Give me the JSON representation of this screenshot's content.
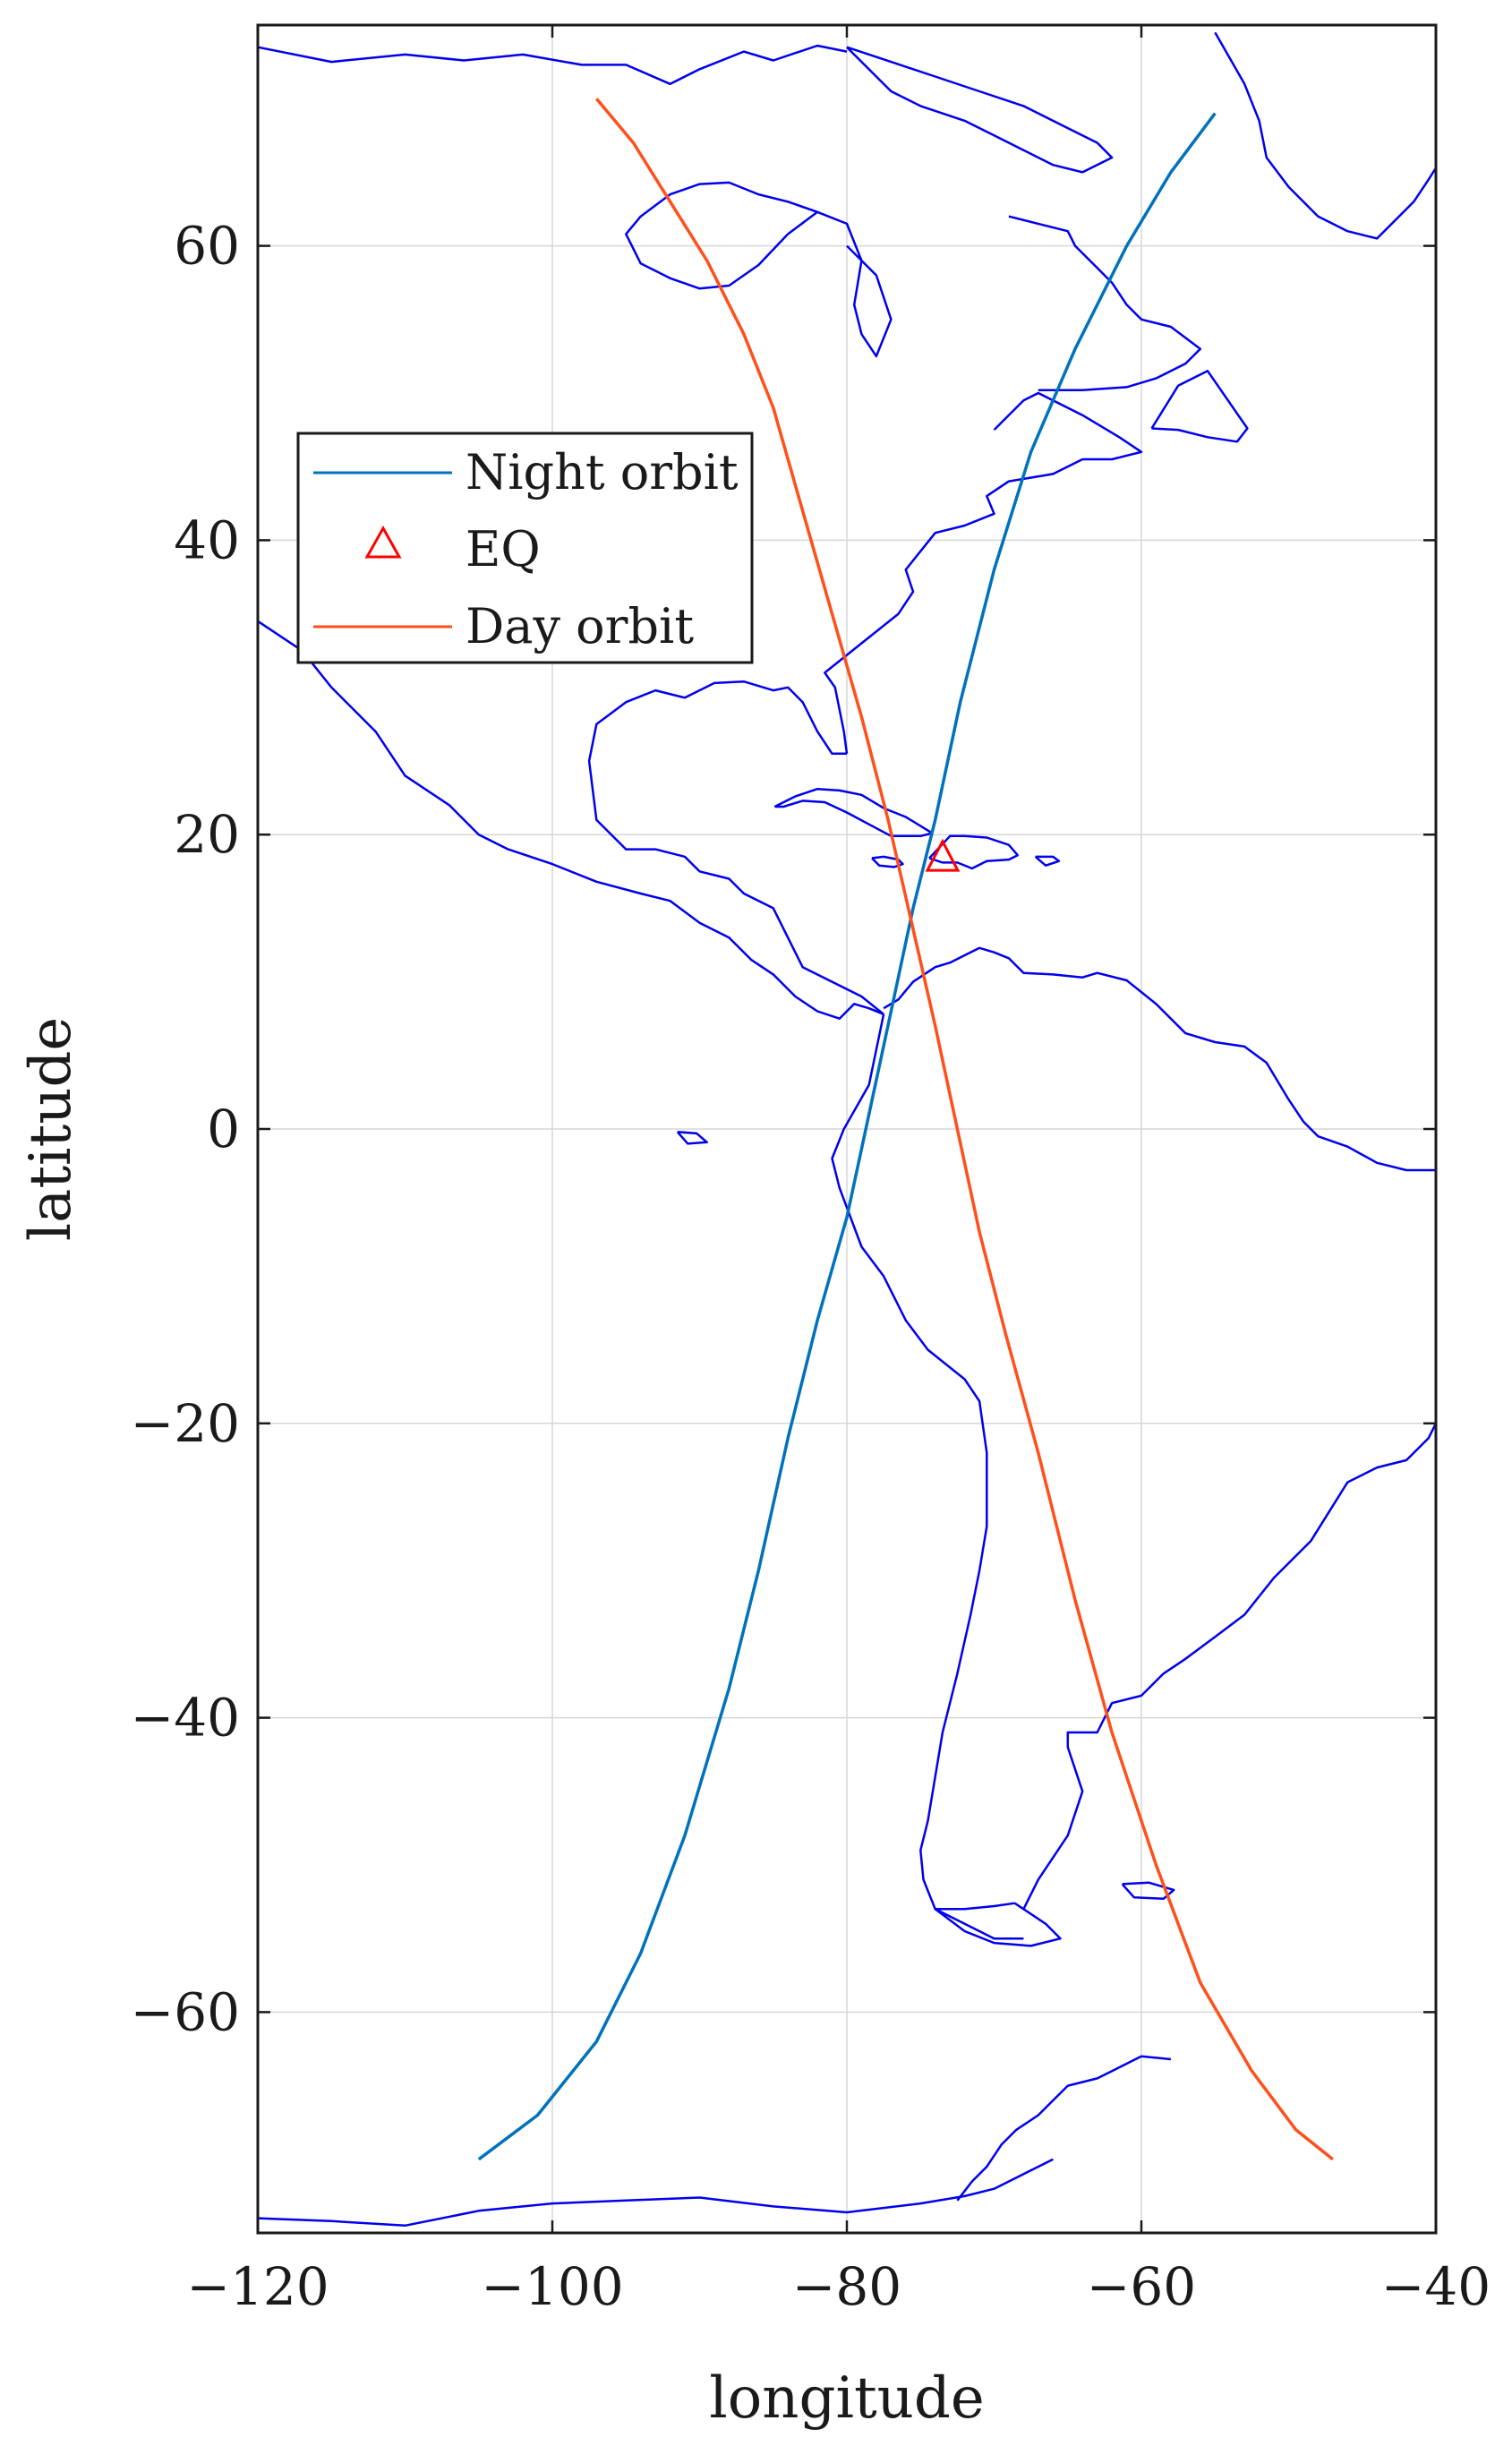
{
  "chart_data": {
    "type": "line",
    "title": "",
    "xlabel": "longitude",
    "ylabel": "latitude",
    "xlim": [
      -120,
      -40
    ],
    "ylim": [
      -75,
      75
    ],
    "xticks": [
      -120,
      -100,
      -80,
      -60,
      -40
    ],
    "yticks": [
      -60,
      -40,
      -20,
      0,
      20,
      40,
      60
    ],
    "xtick_labels": [
      "−120",
      "−100",
      "−80",
      "−60",
      "−40"
    ],
    "ytick_labels": [
      "−60",
      "−40",
      "−20",
      "0",
      "20",
      "40",
      "60"
    ],
    "grid": true,
    "legend_position": "upper-left",
    "background_map": "coastlines",
    "colors": {
      "coastline": "#0000ee",
      "night_orbit": "#0072bd",
      "day_orbit": "#ff4f1a",
      "eq_marker": "#ff0000",
      "grid": "#d6d6d6",
      "axes": "#1a1a1a"
    },
    "series": [
      {
        "name": "Night orbit",
        "marker": "line",
        "x": [
          -105.0,
          -101.0,
          -97.0,
          -94.0,
          -91.0,
          -88.0,
          -86.0,
          -84.0,
          -82.0,
          -80.0,
          -78.5,
          -77.0,
          -75.5,
          -74.0,
          -72.3,
          -70.0,
          -67.5,
          -64.5,
          -61.0,
          -58.0,
          -55.0
        ],
        "y": [
          -70,
          -67,
          -62,
          -56,
          -48,
          -38,
          -30,
          -21,
          -13,
          -6,
          1,
          8,
          15,
          21,
          29,
          38,
          46,
          53,
          60,
          65,
          69
        ]
      },
      {
        "name": "EQ",
        "marker": "triangle",
        "x": [
          -73.5
        ],
        "y": [
          18.5
        ]
      },
      {
        "name": "Day orbit",
        "marker": "line",
        "x": [
          -97.0,
          -94.5,
          -92.0,
          -89.5,
          -87.0,
          -85.0,
          -83.0,
          -81.0,
          -79.0,
          -77.2,
          -75.6,
          -74.0,
          -72.5,
          -71.0,
          -69.2,
          -67.0,
          -64.5,
          -62.0,
          -59.0,
          -56.0,
          -52.5,
          -49.5,
          -47.0
        ],
        "y": [
          70,
          67,
          63,
          59,
          54,
          49,
          42,
          35,
          28,
          21,
          14,
          7,
          0,
          -7,
          -14,
          -22,
          -32,
          -41,
          -50,
          -58,
          -64,
          -68,
          -70
        ]
      }
    ]
  },
  "legend": {
    "items": [
      {
        "label": "Night orbit",
        "symbol": "line",
        "color": "#0072bd"
      },
      {
        "label": "EQ",
        "symbol": "triangle",
        "color": "#ff0000"
      },
      {
        "label": "Day orbit",
        "symbol": "line",
        "color": "#ff4f1a"
      }
    ]
  },
  "map": {
    "coastlines": [
      {
        "name": "north-america-pacific",
        "lon": [
          -120,
          -117,
          -115,
          -112,
          -110,
          -107,
          -105,
          -103,
          -100,
          -97,
          -94,
          -92,
          -90,
          -88,
          -86.5,
          -85,
          -83.5,
          -82,
          -80.5,
          -79.5,
          -78.5,
          -77.5
        ],
        "lat": [
          34.5,
          32.5,
          30,
          27,
          24,
          22,
          20,
          19,
          18,
          16.8,
          16,
          15.5,
          14,
          13,
          11.5,
          10.5,
          9,
          8,
          7.5,
          8.5,
          8.2,
          7.8
        ]
      },
      {
        "name": "south-america-west",
        "lon": [
          -77.5,
          -78.5,
          -80.2,
          -81,
          -80.5,
          -79,
          -77.5,
          -76,
          -74.5,
          -72,
          -71,
          -70.5,
          -70.5,
          -71,
          -71.6,
          -72.5,
          -73.5,
          -74,
          -74.5,
          -75,
          -74.8,
          -74,
          -72,
          -70,
          -68
        ],
        "lat": [
          7.8,
          3,
          0,
          -2,
          -4,
          -8,
          -10,
          -13,
          -15,
          -17,
          -18.5,
          -22,
          -27,
          -30,
          -33,
          -37,
          -41,
          -44,
          -47,
          -49,
          -51,
          -53,
          -54,
          -55,
          -55
        ]
      },
      {
        "name": "south-america-east",
        "lon": [
          -68,
          -67,
          -65,
          -64,
          -65,
          -65,
          -63,
          -62,
          -60,
          -58.5,
          -57,
          -55,
          -53,
          -51,
          -48.5,
          -46,
          -44,
          -42,
          -40.5,
          -40
        ],
        "lat": [
          -53,
          -51,
          -48,
          -45,
          -42,
          -41,
          -41,
          -39,
          -38.5,
          -37,
          -36,
          -34.5,
          -33,
          -30.5,
          -28,
          -24,
          -23,
          -22.5,
          -21,
          -20
        ]
      },
      {
        "name": "south-america-north",
        "lon": [
          -77.5,
          -76.5,
          -75.5,
          -74,
          -73,
          -72,
          -71,
          -70,
          -69,
          -68,
          -66,
          -64,
          -63,
          -61,
          -59,
          -57,
          -55,
          -53,
          -51.5,
          -50,
          -49,
          -48,
          -46,
          -44,
          -42,
          -40
        ],
        "lat": [
          8.2,
          8.8,
          10,
          11,
          11.3,
          11.8,
          12.3,
          12,
          11.6,
          10.6,
          10.5,
          10.3,
          10.6,
          10.1,
          8.5,
          6.5,
          5.9,
          5.6,
          4.5,
          2,
          0.5,
          -0.5,
          -1.2,
          -2.3,
          -2.8,
          -2.8
        ]
      },
      {
        "name": "gulf-of-mexico",
        "lon": [
          -77.5,
          -79,
          -81,
          -83,
          -84,
          -85,
          -87,
          -88,
          -90,
          -91,
          -93,
          -95,
          -97,
          -97.5,
          -97,
          -95,
          -93,
          -91,
          -89,
          -87,
          -85,
          -84,
          -83,
          -82,
          -81,
          -80
        ],
        "lat": [
          7.8,
          9,
          10,
          11,
          13,
          15,
          16,
          17,
          17.5,
          18.5,
          19,
          19,
          21,
          25,
          27.5,
          29,
          29.8,
          29.3,
          30.3,
          30.4,
          29.8,
          30,
          29,
          27,
          25.5,
          25.5
        ]
      },
      {
        "name": "north-america-atlantic",
        "lon": [
          -80,
          -80.2,
          -80.8,
          -81.5,
          -79,
          -76.5,
          -75.5,
          -76,
          -74,
          -72,
          -70,
          -70.5,
          -69,
          -66,
          -64,
          -62,
          -60,
          -61.5,
          -64,
          -66,
          -67,
          -68,
          -70
        ],
        "lat": [
          25.5,
          27,
          30,
          31,
          33,
          35,
          36.5,
          38,
          40.5,
          41,
          41.8,
          43,
          44,
          44.5,
          45.5,
          45.5,
          46,
          47,
          48.5,
          49.5,
          50,
          49.5,
          47.5
        ]
      },
      {
        "name": "labrador-coast",
        "lon": [
          -67,
          -64,
          -61,
          -59,
          -57,
          -56,
          -58,
          -60,
          -61,
          -62,
          -63,
          -64.5,
          -65,
          -67,
          -69
        ],
        "lat": [
          50.2,
          50.2,
          50.4,
          51,
          52,
          53,
          54.5,
          55,
          56,
          57.5,
          58.5,
          60,
          61,
          61.5,
          62
        ]
      },
      {
        "name": "hudson-bay",
        "lon": [
          -82,
          -84,
          -86,
          -88,
          -90,
          -92,
          -94,
          -95,
          -94,
          -92,
          -90,
          -88,
          -86,
          -84,
          -82,
          -80,
          -79,
          -79.5,
          -79,
          -78,
          -77,
          -78,
          -80
        ],
        "lat": [
          62.3,
          60.8,
          58.7,
          57.3,
          57.1,
          57.8,
          58.8,
          60.8,
          62,
          63.5,
          64.2,
          64.3,
          63.5,
          63,
          62.3,
          61.5,
          59,
          56,
          54,
          52.5,
          55,
          58,
          60
        ]
      },
      {
        "name": "canadian-arctic",
        "lon": [
          -120,
          -115,
          -110,
          -106,
          -102,
          -98,
          -95,
          -92,
          -90,
          -87,
          -85,
          -82,
          -80
        ],
        "lat": [
          73.5,
          72.5,
          73,
          72.6,
          73,
          72.3,
          72.3,
          71,
          72,
          73.2,
          72.6,
          73.6,
          73.2
        ]
      },
      {
        "name": "greenland",
        "lon": [
          -55,
          -53,
          -52,
          -51.5,
          -50,
          -48,
          -46,
          -44,
          -43,
          -41.5,
          -40.5,
          -40
        ],
        "lat": [
          74.5,
          71,
          68.5,
          66,
          64,
          62,
          61,
          60.5,
          61.5,
          63,
          64.5,
          65.3
        ]
      },
      {
        "name": "antarctica-peninsula",
        "lon": [
          -58,
          -60,
          -62,
          -63,
          -65,
          -66,
          -67,
          -68.5,
          -69.5,
          -70.5,
          -71.5,
          -72.5
        ],
        "lat": [
          -63.2,
          -63,
          -64,
          -64.5,
          -65,
          -66,
          -67,
          -68,
          -69,
          -70.5,
          -71.5,
          -72.8
        ]
      },
      {
        "name": "antarctica-main",
        "lon": [
          -120,
          -115,
          -110,
          -105,
          -100,
          -95,
          -90,
          -85,
          -80,
          -75,
          -72,
          -70,
          -68,
          -66
        ],
        "lat": [
          -74,
          -74.2,
          -74.5,
          -73.5,
          -73,
          -72.8,
          -72.6,
          -73.2,
          -73.6,
          -73,
          -72.5,
          -72,
          -71,
          -70
        ]
      },
      {
        "name": "cuba",
        "lon": [
          -84.9,
          -83.5,
          -82,
          -80.5,
          -79,
          -77.5,
          -76,
          -74.2,
          -75,
          -77,
          -78.5,
          -80,
          -81.5,
          -83,
          -84.3,
          -84.9
        ],
        "lat": [
          21.9,
          22.6,
          23.1,
          23,
          22.7,
          21.8,
          21.2,
          20.1,
          19.9,
          19.9,
          20.7,
          21.5,
          22.2,
          22.3,
          21.9,
          21.9
        ]
      },
      {
        "name": "hispaniola",
        "lon": [
          -74.4,
          -73,
          -72,
          -70.5,
          -69,
          -68.4,
          -69,
          -70.5,
          -71.5,
          -72.5,
          -73.5,
          -74.4
        ],
        "lat": [
          18.4,
          19.9,
          19.9,
          19.8,
          19.3,
          18.6,
          18.3,
          18.2,
          17.7,
          18.1,
          18.1,
          18.4
        ]
      },
      {
        "name": "jamaica",
        "lon": [
          -78.3,
          -77.5,
          -76.5,
          -76.2,
          -76.8,
          -77.8,
          -78.3
        ],
        "lat": [
          18.4,
          18.5,
          18.3,
          18,
          17.8,
          17.9,
          18.4
        ]
      },
      {
        "name": "puerto-rico",
        "lon": [
          -67.2,
          -66,
          -65.6,
          -66.5,
          -67.2
        ],
        "lat": [
          18.5,
          18.5,
          18.2,
          17.9,
          18.5
        ]
      },
      {
        "name": "newfoundland",
        "lon": [
          -59.3,
          -57.5,
          -55.5,
          -52.8,
          -53.5,
          -55.5,
          -57.5,
          -59.3
        ],
        "lat": [
          47.6,
          50.5,
          51.5,
          47.6,
          46.7,
          47,
          47.5,
          47.6
        ]
      },
      {
        "name": "falklands",
        "lon": [
          -61.3,
          -59.5,
          -57.8,
          -58.5,
          -60.5,
          -61.3
        ],
        "lat": [
          -51.3,
          -51.2,
          -51.7,
          -52.3,
          -52.2,
          -51.3
        ]
      },
      {
        "name": "tierra-del-fuego",
        "lon": [
          -68.6,
          -66.5,
          -65.5,
          -67.5,
          -70,
          -72,
          -74,
          -72,
          -70,
          -68.6
        ],
        "lat": [
          -52.6,
          -54,
          -55,
          -55.5,
          -55.3,
          -54.5,
          -53,
          -53,
          -52.8,
          -52.6
        ]
      },
      {
        "name": "galapagos",
        "lon": [
          -91.5,
          -90.2,
          -89.5,
          -90.8,
          -91.5
        ],
        "lat": [
          -0.2,
          -0.3,
          -0.9,
          -1,
          -0.2
        ]
      },
      {
        "name": "baffin-island",
        "lon": [
          -80,
          -77,
          -74,
          -71,
          -68,
          -65,
          -63,
          -62,
          -64,
          -66,
          -68,
          -70,
          -72,
          -75,
          -77,
          -80
        ],
        "lat": [
          73.5,
          72.5,
          71.5,
          70.5,
          69.5,
          68,
          67,
          66,
          65,
          65.5,
          66.5,
          67.5,
          68.5,
          69.5,
          70.5,
          73.5
        ]
      }
    ]
  }
}
